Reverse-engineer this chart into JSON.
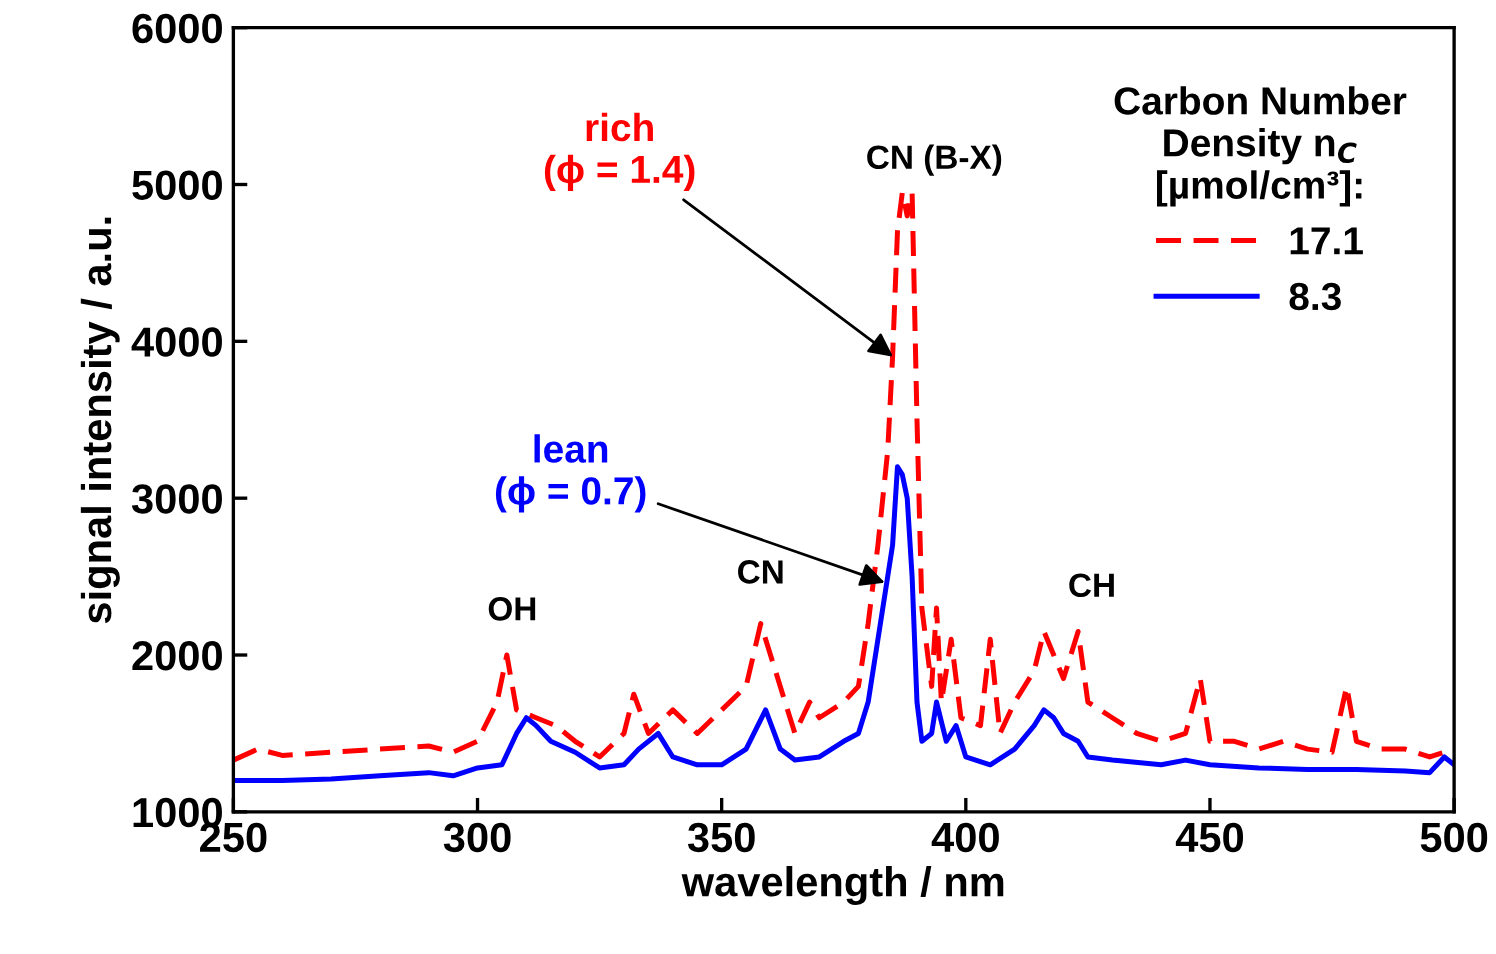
{
  "chart_data": {
    "type": "line",
    "xlabel": "wavelength / nm",
    "ylabel": "signal intensity / a.u.",
    "legend_title": "Carbon Number\nDensity n$_{C}$\n[µmol/cm³]:",
    "legend": "top right",
    "grid": false,
    "marker": "none",
    "xlim": [
      250,
      500
    ],
    "xticks": [
      250,
      300,
      350,
      400,
      450,
      500
    ],
    "ylim": [
      1000,
      6000
    ],
    "yticks": [
      1000,
      2000,
      3000,
      4000,
      5000,
      6000
    ],
    "series": [
      {
        "name": "17.1",
        "color": "#ff0000",
        "line_style": "dashed",
        "x": [
          250,
          255,
          260,
          270,
          280,
          290,
          295,
          300,
          304,
          306,
          308,
          312,
          316,
          320,
          325,
          330,
          332,
          335,
          340,
          345,
          350,
          355,
          358,
          360,
          362,
          365,
          368,
          370,
          375,
          378,
          380,
          382,
          384,
          385,
          386,
          387,
          388,
          389,
          390,
          391,
          393,
          394,
          395,
          397,
          399,
          403,
          405,
          407,
          410,
          414,
          416,
          418,
          420,
          423,
          425,
          430,
          435,
          440,
          445,
          448,
          450,
          455,
          460,
          465,
          470,
          475,
          478,
          480,
          485,
          490,
          495,
          500
        ],
        "values": [
          1330,
          1400,
          1360,
          1380,
          1400,
          1420,
          1380,
          1450,
          1700,
          2000,
          1650,
          1600,
          1550,
          1450,
          1350,
          1500,
          1750,
          1500,
          1650,
          1500,
          1650,
          1800,
          2200,
          2000,
          1800,
          1500,
          1700,
          1600,
          1700,
          1800,
          2200,
          2700,
          3300,
          3900,
          4700,
          4950,
          4800,
          4950,
          3500,
          2300,
          1800,
          2300,
          1700,
          2100,
          1600,
          1550,
          2100,
          1500,
          1700,
          1900,
          2150,
          2000,
          1850,
          2150,
          1700,
          1600,
          1500,
          1450,
          1500,
          1850,
          1450,
          1450,
          1400,
          1450,
          1400,
          1380,
          1800,
          1450,
          1400,
          1400,
          1350,
          1400
        ]
      },
      {
        "name": "8.3",
        "color": "#0000ff",
        "line_style": "solid",
        "x": [
          250,
          260,
          270,
          280,
          290,
          295,
          300,
          305,
          308,
          310,
          312,
          315,
          320,
          325,
          330,
          333,
          337,
          340,
          345,
          350,
          355,
          359,
          362,
          365,
          370,
          375,
          378,
          380,
          382,
          384,
          385,
          386,
          387,
          388,
          389,
          390,
          391,
          393,
          394,
          396,
          398,
          400,
          405,
          410,
          414,
          416,
          418,
          420,
          423,
          425,
          430,
          440,
          445,
          450,
          460,
          470,
          480,
          490,
          495,
          498,
          500
        ],
        "values": [
          1200,
          1200,
          1210,
          1230,
          1250,
          1230,
          1280,
          1300,
          1500,
          1600,
          1550,
          1450,
          1380,
          1280,
          1300,
          1400,
          1500,
          1350,
          1300,
          1300,
          1400,
          1650,
          1400,
          1330,
          1350,
          1450,
          1500,
          1700,
          2100,
          2500,
          2700,
          3200,
          3150,
          3000,
          2500,
          1700,
          1450,
          1500,
          1700,
          1450,
          1550,
          1350,
          1300,
          1400,
          1550,
          1650,
          1600,
          1500,
          1450,
          1350,
          1330,
          1300,
          1330,
          1300,
          1280,
          1270,
          1270,
          1260,
          1250,
          1350,
          1300
        ]
      }
    ],
    "annotations": [
      {
        "text": "rich\n(ϕ = 1.4)",
        "x": 386,
        "y": 3880
      },
      {
        "text": "lean\n(ϕ = 0.7)",
        "x": 384.5,
        "y": 2450
      },
      {
        "text": "OH",
        "x": 306,
        "y": 2000
      },
      {
        "text": "CN",
        "x": 358,
        "y": 2200
      },
      {
        "text": "CN (B-X)",
        "x": 389,
        "y": 4950
      },
      {
        "text": "CH",
        "x": 423,
        "y": 2150
      }
    ]
  }
}
